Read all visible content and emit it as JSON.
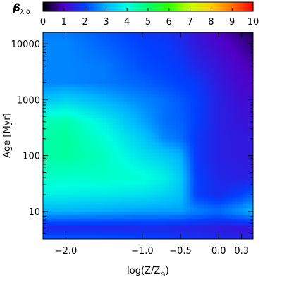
{
  "chart_data": {
    "type": "heatmap",
    "title": "",
    "xlabel": "log(Z/Z",
    "xlabel_sub": "⊙",
    "xlabel_close": ")",
    "ylabel": "Age [Myr]",
    "x_scale": "linear",
    "y_scale": "log",
    "xlim": [
      -2.3,
      0.45
    ],
    "ylim": [
      3.2,
      16000
    ],
    "x_ticks": [
      {
        "value": -2.0,
        "label": "−2.0"
      },
      {
        "value": -1.0,
        "label": "−1.0"
      },
      {
        "value": -0.5,
        "label": "−0.5"
      },
      {
        "value": 0.0,
        "label": "0.0"
      },
      {
        "value": 0.3,
        "label": "0.3"
      }
    ],
    "y_ticks": [
      {
        "value": 10,
        "label": "10"
      },
      {
        "value": 100,
        "label": "100"
      },
      {
        "value": 1000,
        "label": "1000"
      },
      {
        "value": 10000,
        "label": "10000"
      }
    ],
    "colorbar": {
      "label_symbol": "β",
      "label_subscript": "λ,0",
      "range": [
        0,
        10
      ],
      "ticks": [
        "0",
        "1",
        "2",
        "3",
        "4",
        "5",
        "6",
        "7",
        "8",
        "9",
        "10"
      ],
      "colormap": [
        {
          "v": 0,
          "color": "#000000"
        },
        {
          "v": 1,
          "color": "#5000c8"
        },
        {
          "v": 2,
          "color": "#0040ff"
        },
        {
          "v": 3,
          "color": "#00b4ff"
        },
        {
          "v": 4,
          "color": "#00ffe0"
        },
        {
          "v": 5,
          "color": "#00ff70"
        },
        {
          "v": 6,
          "color": "#30ff00"
        },
        {
          "v": 7,
          "color": "#c8ff00"
        },
        {
          "v": 8,
          "color": "#ffd000"
        },
        {
          "v": 9,
          "color": "#ff7000"
        },
        {
          "v": 10,
          "color": "#ff0000"
        }
      ]
    },
    "grid_x": [
      -2.3,
      -2.0,
      -1.5,
      -1.0,
      -0.7,
      -0.5,
      -0.3,
      0.0,
      0.3,
      0.45
    ],
    "grid_logage": [
      0.5,
      0.7,
      1.0,
      1.3,
      1.6,
      2.0,
      2.3,
      2.6,
      3.0,
      3.3,
      3.6,
      4.0,
      4.2
    ],
    "values": [
      [
        2.3,
        2.3,
        2.2,
        2.1,
        2.0,
        1.9,
        1.8,
        1.7,
        1.6,
        1.6
      ],
      [
        1.6,
        1.6,
        1.6,
        1.6,
        1.6,
        1.5,
        1.5,
        1.4,
        1.3,
        1.3
      ],
      [
        3.0,
        3.0,
        2.9,
        2.8,
        2.8,
        2.8,
        2.6,
        2.4,
        2.8,
        3.1
      ],
      [
        3.8,
        3.8,
        3.7,
        3.6,
        3.4,
        3.2,
        2.0,
        1.7,
        2.0,
        2.3
      ],
      [
        4.2,
        4.2,
        4.2,
        4.1,
        3.8,
        3.3,
        2.0,
        1.6,
        1.5,
        1.5
      ],
      [
        4.5,
        4.6,
        4.3,
        3.6,
        3.3,
        3.0,
        1.9,
        1.5,
        1.4,
        1.4
      ],
      [
        4.5,
        4.6,
        4.1,
        3.3,
        2.6,
        2.4,
        1.9,
        1.5,
        1.4,
        1.4
      ],
      [
        4.4,
        4.5,
        3.8,
        2.9,
        2.4,
        2.3,
        2.0,
        1.5,
        1.3,
        1.3
      ],
      [
        3.2,
        3.4,
        3.0,
        2.6,
        2.4,
        2.2,
        2.0,
        1.5,
        1.2,
        1.2
      ],
      [
        2.6,
        2.6,
        2.5,
        2.3,
        2.1,
        2.0,
        1.9,
        1.4,
        1.1,
        1.0
      ],
      [
        2.6,
        2.6,
        2.5,
        2.1,
        2.0,
        1.9,
        1.6,
        1.3,
        1.0,
        0.9
      ],
      [
        2.6,
        2.6,
        2.3,
        2.0,
        1.9,
        1.7,
        1.4,
        1.1,
        0.8,
        0.6
      ],
      [
        2.5,
        2.5,
        2.2,
        1.9,
        1.8,
        1.6,
        1.3,
        1.0,
        0.6,
        0.4
      ]
    ]
  }
}
